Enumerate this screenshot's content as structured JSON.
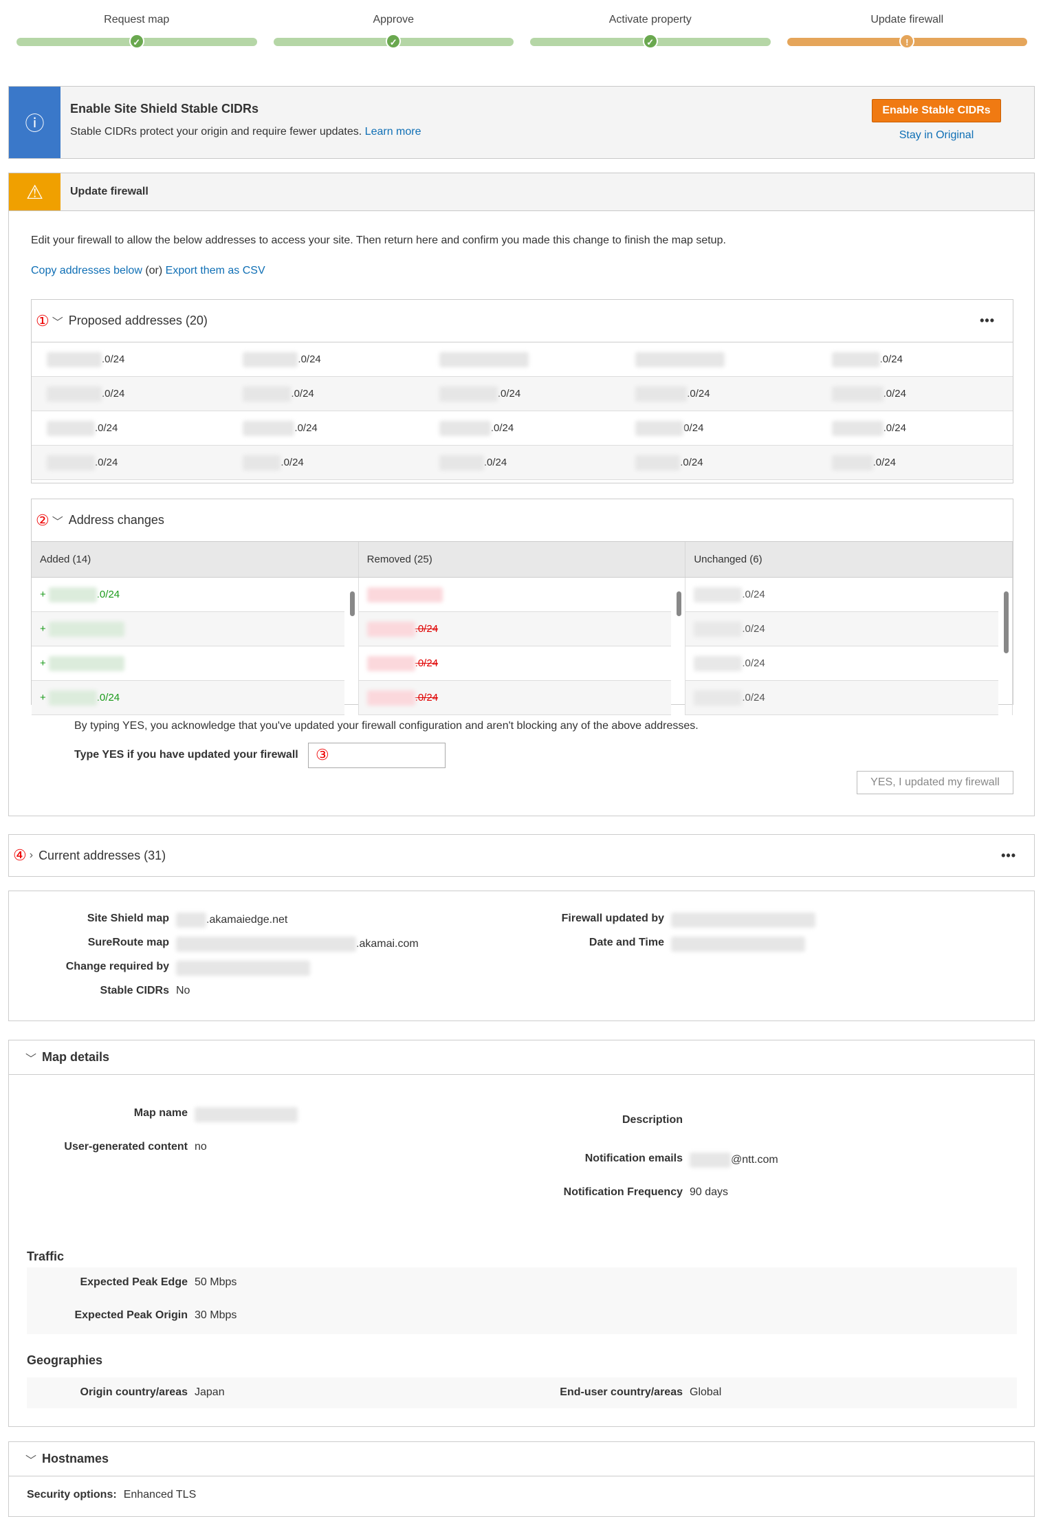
{
  "steps": [
    {
      "label": "Request map",
      "status": "done"
    },
    {
      "label": "Approve",
      "status": "done"
    },
    {
      "label": "Activate property",
      "status": "done"
    },
    {
      "label": "Update firewall",
      "status": "warning"
    }
  ],
  "colors": {
    "done_bar": "#b5d6a6",
    "done_dot": "#6aa84f",
    "warn_bar": "#e5a55a",
    "info": "#3a78c9",
    "warning": "#f0a000",
    "primary_button": "#f07a12",
    "link": "#0f6fb5",
    "added": "#1a9a1a",
    "removed": "#e00000"
  },
  "info_banner": {
    "title": "Enable Site Shield Stable CIDRs",
    "text": "Stable CIDRs protect your origin and require fewer updates.",
    "learn_more": "Learn more",
    "enable_button": "Enable Stable CIDRs",
    "stay_link": "Stay in Original",
    "icon": "info-icon"
  },
  "warning_banner": {
    "title": "Update firewall",
    "icon": "warning-icon"
  },
  "firewall": {
    "instructions": "Edit your firewall to allow the below addresses to access your site. Then return here and confirm you made this change to finish the map setup.",
    "copy_link": "Copy addresses below",
    "or_text": "(or)",
    "export_link": "Export them as CSV",
    "proposed": {
      "marker": "①",
      "title": "Proposed addresses (20)",
      "more": "•••",
      "rows": [
        [
          ".0/24",
          ".0/24",
          "",
          "",
          ".0/24"
        ],
        [
          ".0/24",
          ".0/24",
          ".0/24",
          ".0/24",
          ".0/24"
        ],
        [
          ".0/24",
          ".0/24",
          ".0/24",
          "0/24",
          ".0/24"
        ],
        [
          ".0/24",
          ".0/24",
          ".0/24",
          ".0/24",
          ".0/24"
        ]
      ]
    },
    "changes": {
      "marker": "②",
      "title": "Address changes",
      "headers": [
        "Added (14)",
        "Removed (25)",
        "Unchanged (6)"
      ],
      "added": [
        ".0/24",
        "",
        "",
        ".0/24"
      ],
      "removed": [
        "",
        ".0/24",
        ".0/24",
        ".0/24"
      ],
      "unchanged": [
        ".0/24",
        ".0/24",
        ".0/24",
        ".0/24"
      ],
      "added_prefix": "+"
    },
    "ack_text": "By typing YES, you acknowledge that you've updated your firewall configuration and aren't blocking any of the above addresses.",
    "yes_label": "Type YES if you have updated your firewall",
    "yes_marker": "③",
    "yes_value": "",
    "confirm_button": "YES, I updated my firewall"
  },
  "current": {
    "marker": "④",
    "title": "Current addresses (31)",
    "more": "•••"
  },
  "summary": {
    "site_shield_label": "Site Shield map",
    "site_shield_value": ".akamaiedge.net",
    "sureroute_label": "SureRoute map",
    "sureroute_value": ".akamai.com",
    "change_label": "Change required by",
    "stable_label": "Stable CIDRs",
    "stable_value": "No",
    "fw_updated_label": "Firewall updated by",
    "date_label": "Date and Time"
  },
  "map_details": {
    "title": "Map details",
    "map_name_label": "Map name",
    "ugc_label": "User-generated content",
    "ugc_value": "no",
    "description_label": "Description",
    "emails_label": "Notification emails",
    "emails_value": "@ntt.com",
    "freq_label": "Notification Frequency",
    "freq_value": "90 days",
    "traffic_title": "Traffic",
    "peak_edge_label": "Expected Peak Edge",
    "peak_edge_value": "50 Mbps",
    "peak_origin_label": "Expected Peak Origin",
    "peak_origin_value": "30 Mbps",
    "geo_title": "Geographies",
    "origin_label": "Origin country/areas",
    "origin_value": "Japan",
    "enduser_label": "End-user country/areas",
    "enduser_value": "Global"
  },
  "hostnames": {
    "title": "Hostnames",
    "security_label": "Security options:",
    "security_value": "Enhanced TLS"
  }
}
